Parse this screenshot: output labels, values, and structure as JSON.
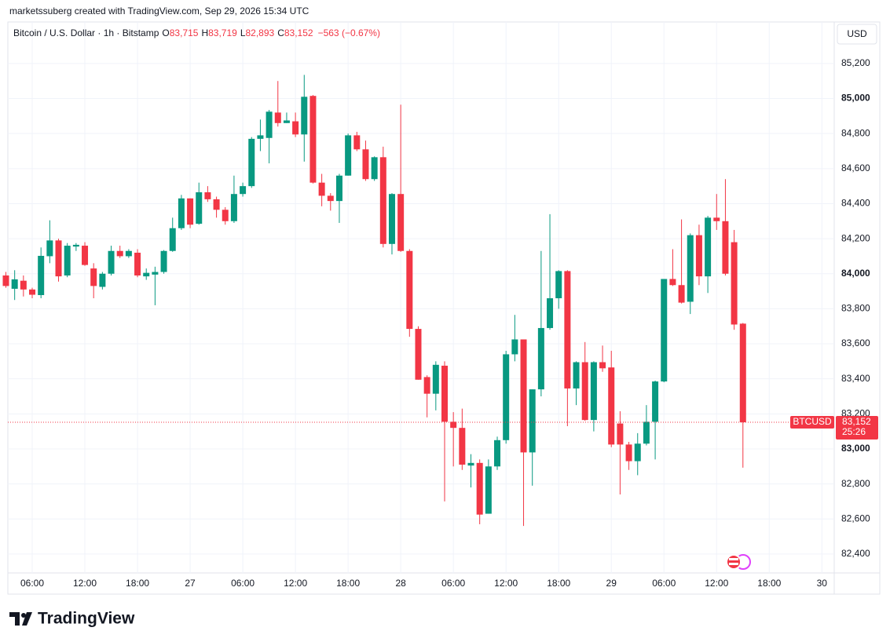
{
  "header": {
    "caption": "marketssuberg created with TradingView.com, Sep 29, 2026 15:34 UTC"
  },
  "legend": {
    "symbol": "Bitcoin / U.S. Dollar · 1h · Bitstamp",
    "open_label": "O",
    "open": "83,715",
    "high_label": "H",
    "high": "83,719",
    "low_label": "L",
    "low": "82,893",
    "close_label": "C",
    "close": "83,152",
    "change": "−563 (−0.67%)"
  },
  "currency": "USD",
  "price_tag": {
    "symbol": "BTCUSD",
    "price": "83,152",
    "countdown": "25:26"
  },
  "footer": {
    "brand": "TradingView"
  },
  "chart_data": {
    "type": "candlestick",
    "up_color": "#089981",
    "down_color": "#f23645",
    "grid": true,
    "categories": [
      null,
      null,
      null,
      "06:00",
      null,
      null,
      null,
      null,
      null,
      "12:00",
      null,
      null,
      null,
      null,
      null,
      "18:00",
      null,
      null,
      null,
      null,
      null,
      "27",
      null,
      null,
      null,
      null,
      null,
      "06:00",
      null,
      null,
      null,
      null,
      null,
      "12:00",
      null,
      null,
      null,
      null,
      null,
      "18:00",
      null,
      null,
      null,
      null,
      null,
      "28",
      null,
      null,
      null,
      null,
      null,
      "06:00",
      null,
      null,
      null,
      null,
      null,
      "12:00",
      null,
      null,
      null,
      null,
      null,
      "18:00",
      null,
      null,
      null,
      null,
      null,
      "29",
      null,
      null,
      null,
      null,
      null,
      "06:00",
      null,
      null,
      null,
      null,
      null,
      "12:00",
      null,
      null,
      null,
      null,
      null,
      "18:00",
      null,
      null,
      null,
      null,
      null,
      "30",
      null
    ],
    "open": [
      83990,
      83914,
      83960,
      83910,
      83878,
      84100,
      84190,
      83990,
      84155,
      84160,
      84030,
      83925,
      84000,
      84130,
      84100,
      84120,
      83985,
      83995,
      84010,
      84130,
      84260,
      84430,
      84285,
      84465,
      84425,
      84365,
      84300,
      84455,
      84500,
      84770,
      84775,
      84920,
      84860,
      84870,
      84795,
      85015,
      84520,
      84445,
      84415,
      84560,
      84790,
      84710,
      84540,
      84665,
      84170,
      84455,
      84130,
      83685,
      83410,
      83315,
      83475,
      83155,
      83120,
      82905,
      82920,
      82630,
      82900,
      83050,
      83540,
      83625,
      82980,
      83340,
      83690,
      83860,
      84015,
      83345,
      83495,
      83165,
      83495,
      83465,
      83145,
      83025,
      82930,
      83030,
      83155,
      83385,
      83970,
      83935,
      83840,
      84220,
      83985,
      84320,
      84300,
      84180,
      83715,
      null,
      null,
      null,
      null,
      null,
      null,
      null,
      null,
      null,
      null
    ],
    "high": [
      84010,
      84020,
      83990,
      83920,
      84150,
      84305,
      84200,
      84175,
      84175,
      84180,
      84060,
      84010,
      84160,
      84160,
      84140,
      84140,
      84030,
      84040,
      84135,
      84320,
      84450,
      84430,
      84520,
      84500,
      84440,
      84380,
      84560,
      84520,
      84780,
      84880,
      84935,
      85100,
      84920,
      84920,
      85135,
      85020,
      84570,
      84460,
      84570,
      84800,
      84810,
      84760,
      84670,
      84725,
      84460,
      84965,
      84140,
      83700,
      83420,
      83500,
      83500,
      83210,
      83230,
      82970,
      82940,
      82940,
      83070,
      83560,
      83765,
      83625,
      83340,
      84130,
      84340,
      84020,
      84020,
      83500,
      83610,
      83500,
      83590,
      83560,
      83215,
      83040,
      83090,
      83250,
      83390,
      83970,
      84140,
      84310,
      84230,
      84280,
      84330,
      84455,
      84540,
      84250,
      83719,
      null,
      null,
      null,
      null,
      null,
      null,
      null,
      null,
      null,
      null
    ],
    "low": [
      83920,
      83850,
      83870,
      83860,
      83860,
      84060,
      83955,
      83980,
      84130,
      84045,
      83860,
      83910,
      83990,
      84090,
      84090,
      83980,
      83965,
      83820,
      84000,
      84125,
      84250,
      84260,
      84280,
      84410,
      84320,
      84280,
      84290,
      84440,
      84490,
      84700,
      84630,
      84840,
      84860,
      84780,
      84640,
      84515,
      84385,
      84360,
      84290,
      84560,
      84700,
      84530,
      84530,
      84150,
      84110,
      84125,
      83640,
      83395,
      83180,
      83220,
      82700,
      82900,
      82880,
      82780,
      82570,
      82630,
      82880,
      83030,
      83500,
      82560,
      82790,
      83300,
      83680,
      83800,
      83130,
      83250,
      83160,
      83100,
      83440,
      83010,
      82740,
      82880,
      82850,
      83020,
      82940,
      83380,
      83930,
      83830,
      83770,
      83935,
      83890,
      84250,
      83990,
      83680,
      82893,
      null,
      null,
      null,
      null,
      null,
      null,
      null,
      null,
      null,
      null
    ],
    "close": [
      83930,
      83968,
      83910,
      83880,
      84102,
      84190,
      83985,
      84160,
      84165,
      84050,
      83930,
      84000,
      84130,
      84100,
      84130,
      83990,
      84005,
      84010,
      84130,
      84260,
      84430,
      84280,
      84465,
      84425,
      84365,
      84300,
      84455,
      84500,
      84770,
      84790,
      84925,
      84860,
      84875,
      84795,
      85010,
      84520,
      84445,
      84415,
      84560,
      84790,
      84710,
      84540,
      84665,
      84170,
      84455,
      84130,
      83685,
      83395,
      83315,
      83480,
      83155,
      83120,
      82910,
      82920,
      82625,
      82900,
      83050,
      83540,
      83625,
      82980,
      83340,
      83690,
      83860,
      84015,
      83345,
      83495,
      83165,
      83495,
      83460,
      83025,
      83025,
      82930,
      83030,
      83155,
      83385,
      83970,
      83935,
      83835,
      84220,
      83985,
      84320,
      84300,
      84000,
      83710,
      83152,
      null,
      null,
      null,
      null,
      null,
      null,
      null,
      null,
      null,
      null
    ],
    "ylim": [
      82292,
      85437
    ],
    "yticks": [
      {
        "value": 82400,
        "label": "82,400"
      },
      {
        "value": 82600,
        "label": "82,600"
      },
      {
        "value": 82800,
        "label": "82,800"
      },
      {
        "value": 83000,
        "label": "83,000"
      },
      {
        "value": 83200,
        "label": "83,200"
      },
      {
        "value": 83400,
        "label": "83,400"
      },
      {
        "value": 83600,
        "label": "83,600"
      },
      {
        "value": 83800,
        "label": "83,800"
      },
      {
        "value": 84000,
        "label": "84,000"
      },
      {
        "value": 84200,
        "label": "84,200"
      },
      {
        "value": 84400,
        "label": "84,400"
      },
      {
        "value": 84600,
        "label": "84,600"
      },
      {
        "value": 84800,
        "label": "84,800"
      },
      {
        "value": 85000,
        "label": "85,000"
      },
      {
        "value": 85200,
        "label": "85,200"
      }
    ]
  }
}
